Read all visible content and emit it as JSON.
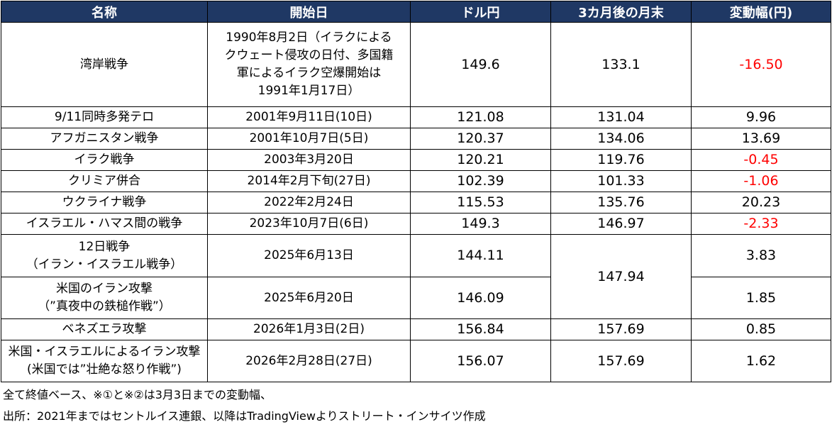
{
  "headers": [
    "名称",
    "開始日",
    "ドル円",
    "3カ月後の月末",
    "変動幅(円)"
  ],
  "rows": [
    {
      "name": [
        "湾岸戦争"
      ],
      "start": [
        "1990年8月2日（イラクによる",
        "クウェート侵攻の日付、多国籍",
        "軍によるイラク空爆開始は",
        "1991年1月17日）"
      ],
      "usdjpy": "149.6",
      "after": "133.1",
      "change": "-16.50",
      "negative": true
    },
    {
      "name": [
        "9/11同時多発テロ"
      ],
      "start": [
        "2001年9月11日(10日)"
      ],
      "usdjpy": "121.08",
      "after": "131.04",
      "change": "9.96",
      "negative": false
    },
    {
      "name": [
        "アフガニスタン戦争"
      ],
      "start": [
        "2001年10月7日(5日)"
      ],
      "usdjpy": "120.37",
      "after": "134.06",
      "change": "13.69",
      "negative": false
    },
    {
      "name": [
        "イラク戦争"
      ],
      "start": [
        "2003年3月20日"
      ],
      "usdjpy": "120.21",
      "after": "119.76",
      "change": "-0.45",
      "negative": true
    },
    {
      "name": [
        "クリミア併合"
      ],
      "start": [
        "2014年2月下旬(27日)"
      ],
      "usdjpy": "102.39",
      "after": "101.33",
      "change": "-1.06",
      "negative": true
    },
    {
      "name": [
        "ウクライナ戦争"
      ],
      "start": [
        "2022年2月24日"
      ],
      "usdjpy": "115.53",
      "after": "135.76",
      "change": "20.23",
      "negative": false
    },
    {
      "name": [
        "イスラエル・ハマス間の戦争"
      ],
      "start": [
        "2023年10月7日(6日)"
      ],
      "usdjpy": "149.3",
      "after": "146.97",
      "change": "-2.33",
      "negative": true
    },
    {
      "name": [
        "12日戦争",
        "（イラン・イスラエル戦争）"
      ],
      "start": [
        "2025年6月13日"
      ],
      "usdjpy": "144.11",
      "after": "147.94",
      "change": "3.83",
      "negative": false
    },
    {
      "name": [
        "米国のイラン攻撃",
        "（”真夜中の鉄槌作戦”）"
      ],
      "start": [
        "2025年6月20日"
      ],
      "usdjpy": "146.09",
      "after": null,
      "change": "1.85",
      "negative": false
    },
    {
      "name": [
        "ベネズエラ攻撃"
      ],
      "start": [
        "2026年1月3日(2日)"
      ],
      "usdjpy": "156.84",
      "after": "157.69",
      "change": "0.85",
      "negative": false
    },
    {
      "name": [
        "米国・イスラエルによるイラン攻撃",
        "(米国では”壮絶な怒り作戦”)"
      ],
      "start": [
        "2026年2月28日(27日)"
      ],
      "usdjpy": "156.07",
      "after": "157.69",
      "change": "1.62",
      "negative": false
    }
  ],
  "footer": {
    "note": "全て終値ベース、※①と※②は3月3日までの変動幅、",
    "source": "出所：2021年まではセントルイス連銀、以降はTradingViewよりストリート・インサイツ作成"
  }
}
